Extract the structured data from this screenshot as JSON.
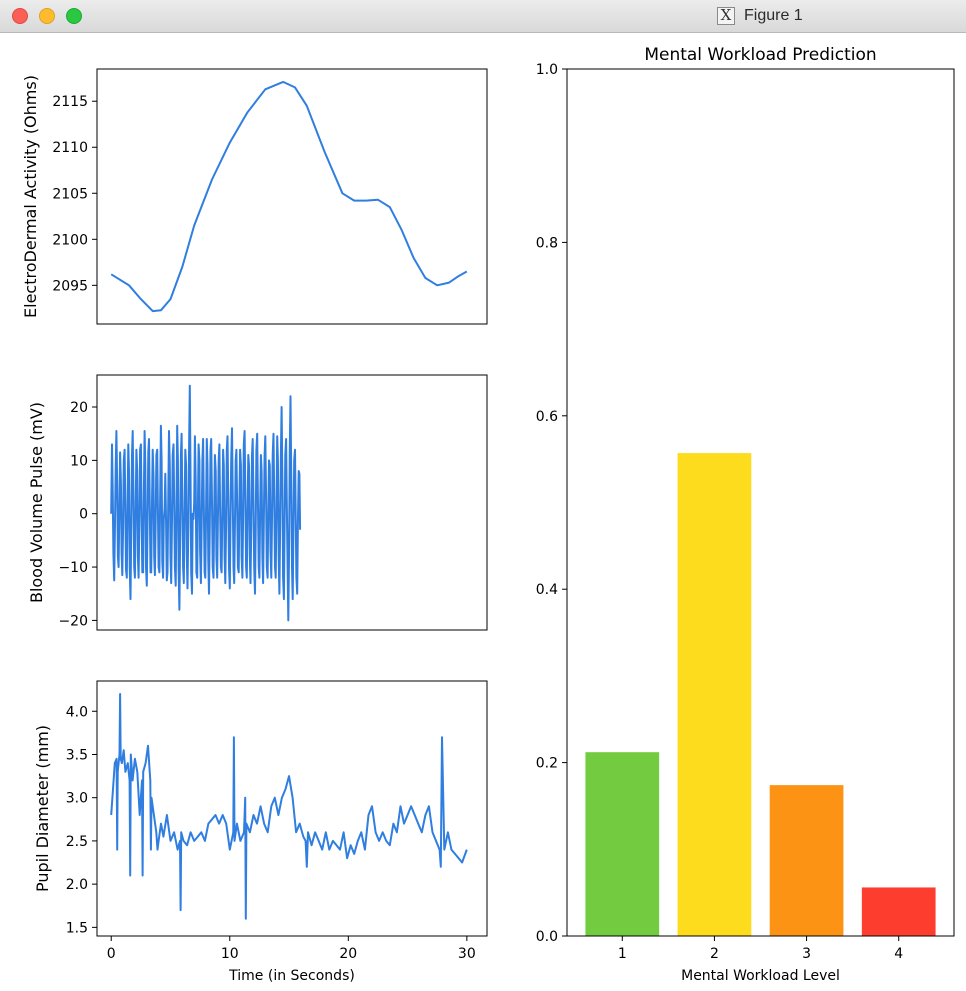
{
  "window": {
    "title": "Figure 1",
    "app_icon": "x11-icon",
    "controls": [
      "close-button",
      "minimize-button",
      "zoom-button"
    ]
  },
  "colors": {
    "line": "#2f7ee0",
    "bars": [
      "#73cc3f",
      "#fcdc1c",
      "#fd9314",
      "#fd3d2d"
    ]
  },
  "chart_data": [
    {
      "type": "line",
      "ylabel": "ElectroDermal Activity (Ohms)",
      "xlim": [
        -1.2,
        31.7
      ],
      "ylim": [
        2090.8,
        2118.5
      ],
      "yticks": [
        2095,
        2100,
        2105,
        2110,
        2115
      ],
      "x": [
        0,
        1.5,
        2.5,
        3.5,
        4.2,
        5,
        6,
        7,
        8.5,
        10,
        11.5,
        13,
        14.5,
        15.5,
        16.5,
        18,
        19.5,
        20.5,
        21.5,
        22.5,
        23.5,
        24.5,
        25.5,
        26.5,
        27.5,
        28.5,
        29.3,
        30
      ],
      "y": [
        2096.2,
        2095.0,
        2093.5,
        2092.2,
        2092.3,
        2093.5,
        2097.0,
        2101.5,
        2106.5,
        2110.5,
        2113.8,
        2116.3,
        2117.1,
        2116.5,
        2114.5,
        2109.5,
        2105.0,
        2104.2,
        2104.2,
        2104.3,
        2103.5,
        2101.0,
        2098.0,
        2095.8,
        2095.0,
        2095.3,
        2096.0,
        2096.5
      ],
      "grid": false
    },
    {
      "type": "line",
      "ylabel": "Blood Volume Pulse (mV)",
      "xlim": [
        -1.2,
        31.7
      ],
      "ylim": [
        -21.8,
        26.0
      ],
      "yticks": [
        -20,
        -10,
        0,
        10,
        20
      ],
      "x_start": 0,
      "x_step": 0.0625,
      "y": [
        0,
        13.0,
        4.5,
        -7.5,
        -12.5,
        -3.0,
        8.5,
        15.5,
        5.0,
        -8.0,
        -10.0,
        1.5,
        11.5,
        6.0,
        -7.5,
        -11.5,
        -2.5,
        10.0,
        12.0,
        2.0,
        -10.5,
        -12.0,
        0.5,
        13.0,
        8.0,
        -10.0,
        -16.0,
        -4.0,
        11.0,
        15.5,
        3.0,
        -10.0,
        -12.0,
        1.0,
        12.0,
        8.0,
        -8.0,
        -12.0,
        -1.0,
        12.0,
        13.0,
        0.0,
        -11.0,
        -11.0,
        2.5,
        15.5,
        9.0,
        -10.0,
        -13.5,
        -2.0,
        11.5,
        14.0,
        1.0,
        -11.0,
        -11.0,
        2.0,
        12.0,
        7.0,
        -8.0,
        -11.5,
        -1.0,
        11.0,
        12.0,
        1.0,
        -10.0,
        -11.0,
        2.0,
        16.5,
        10.0,
        -9.0,
        -12.0,
        -1.0,
        1.0,
        7.5,
        -2.0,
        -12.5,
        -11.0,
        3.5,
        15.5,
        9.0,
        -8.0,
        -13.0,
        -1.0,
        11.0,
        13.0,
        2.0,
        -10.0,
        -13.5,
        0.0,
        16.5,
        10.0,
        -10.0,
        -18.0,
        -5.0,
        11.0,
        15.0,
        3.0,
        -10.0,
        -13.0,
        0.5,
        12.0,
        9.0,
        -8.0,
        -14.0,
        -3.0,
        11.0,
        24.0,
        8.0,
        -11.0,
        -15.0,
        0.0,
        -1.0,
        2.0,
        14.5,
        6.0,
        -11.0,
        -12.0,
        1.0,
        13.0,
        10.0,
        -7.0,
        -13.0,
        -3.0,
        10.0,
        14.0,
        2.0,
        -11.0,
        -12.0,
        1.0,
        14.0,
        9.0,
        -9.0,
        -15.0,
        -2.0,
        12.0,
        14.0,
        2.0,
        -10.0,
        -12.0,
        0.0,
        11.0,
        8.0,
        -8.0,
        -12.0,
        -1.0,
        10.0,
        13.0,
        1.0,
        -10.0,
        -11.0,
        1.0,
        12.0,
        9.0,
        -8.0,
        -13.0,
        -2.0,
        12.0,
        14.5,
        3.0,
        -10.0,
        -14.0,
        -1.0,
        10.0,
        16.0,
        4.0,
        -10.0,
        -13.0,
        -1.0,
        10.0,
        12.0,
        1.0,
        -10.0,
        -11.0,
        2.0,
        12.0,
        9.0,
        -8.0,
        -12.0,
        -1.0,
        13.0,
        15.5,
        4.0,
        -10.0,
        -12.0,
        0.0,
        11.0,
        9.0,
        -8.0,
        -13.0,
        -2.0,
        11.0,
        14.0,
        2.0,
        -10.0,
        -15.0,
        -3.0,
        12.0,
        15.0,
        3.0,
        -10.0,
        -12.0,
        0.0,
        11.0,
        8.0,
        -8.0,
        -13.0,
        -2.0,
        11.0,
        14.5,
        3.0,
        -10.0,
        -12.0,
        0.0,
        10.0,
        9.0,
        -7.0,
        -12.0,
        -1.0,
        11.0,
        15.0,
        3.0,
        -10.0,
        -12.0,
        0.0,
        14.5,
        10.0,
        -8.0,
        -15.0,
        -3.0,
        11.0,
        20.0,
        6.0,
        -12.0,
        -16.0,
        -2.0,
        11.0,
        14.0,
        2.0,
        -10.0,
        -20.0,
        -8.0,
        12.0,
        22.0,
        6.0,
        -10.0,
        -16.0,
        -2.0,
        10.0,
        12.0,
        0.0,
        -12.0,
        -15.0,
        -2.0,
        8.0,
        7.5,
        -3.0
      ]
    },
    {
      "type": "line",
      "xlabel": "Time (in Seconds)",
      "ylabel": "Pupil Diameter (mm)",
      "xlim": [
        -1.2,
        31.7
      ],
      "ylim": [
        1.4,
        4.35
      ],
      "xticks": [
        0,
        10,
        20,
        30
      ],
      "yticks": [
        1.5,
        2.0,
        2.5,
        3.0,
        3.5,
        4.0
      ],
      "x": [
        0,
        0.15,
        0.3,
        0.45,
        0.5,
        0.55,
        0.7,
        0.75,
        0.8,
        0.9,
        1.05,
        1.2,
        1.4,
        1.55,
        1.6,
        1.65,
        1.8,
        2.0,
        2.2,
        2.4,
        2.6,
        2.65,
        2.7,
        2.9,
        3.1,
        3.3,
        3.35,
        3.4,
        3.6,
        3.8,
        3.9,
        4.0,
        4.2,
        4.4,
        4.7,
        5.0,
        5.3,
        5.6,
        5.8,
        5.85,
        5.9,
        6.1,
        6.4,
        6.7,
        7.0,
        7.3,
        7.6,
        7.9,
        8.2,
        8.5,
        8.8,
        9.1,
        9.4,
        9.7,
        10.0,
        10.3,
        10.35,
        10.4,
        10.6,
        10.9,
        11.2,
        11.3,
        11.35,
        11.4,
        11.7,
        12.0,
        12.3,
        12.6,
        12.9,
        13.2,
        13.5,
        13.8,
        14.1,
        14.4,
        14.7,
        15.0,
        15.3,
        15.6,
        15.9,
        16.2,
        16.4,
        16.5,
        16.6,
        16.9,
        17.2,
        17.5,
        17.8,
        18.1,
        18.4,
        18.7,
        19.0,
        19.3,
        19.6,
        19.9,
        20.2,
        20.5,
        20.8,
        21.1,
        21.4,
        21.7,
        22.0,
        22.3,
        22.6,
        22.9,
        23.2,
        23.5,
        23.8,
        24.1,
        24.4,
        24.7,
        25.0,
        25.3,
        25.6,
        25.9,
        26.2,
        26.5,
        26.8,
        27.1,
        27.4,
        27.7,
        27.8,
        27.9,
        28.1,
        28.4,
        28.7,
        29.0,
        29.3,
        29.6,
        30.0
      ],
      "y": [
        2.8,
        3.1,
        3.4,
        3.45,
        2.4,
        3.3,
        3.5,
        4.2,
        3.45,
        3.4,
        3.55,
        3.3,
        3.4,
        3.2,
        2.1,
        3.5,
        3.2,
        3.45,
        3.3,
        2.8,
        3.2,
        2.1,
        3.3,
        3.4,
        3.6,
        3.2,
        2.4,
        3.0,
        2.8,
        2.6,
        2.4,
        2.5,
        2.7,
        2.55,
        2.8,
        2.5,
        2.6,
        2.4,
        2.5,
        1.7,
        2.6,
        2.5,
        2.45,
        2.6,
        2.5,
        2.55,
        2.6,
        2.5,
        2.7,
        2.75,
        2.8,
        2.7,
        2.8,
        2.7,
        2.4,
        2.6,
        3.7,
        2.5,
        2.7,
        2.5,
        2.6,
        3.0,
        1.6,
        2.7,
        2.6,
        2.8,
        2.7,
        2.9,
        2.7,
        2.6,
        2.9,
        3.0,
        2.8,
        3.0,
        3.1,
        3.25,
        3.0,
        2.6,
        2.7,
        2.55,
        2.5,
        2.2,
        2.6,
        2.45,
        2.6,
        2.5,
        2.4,
        2.6,
        2.4,
        2.5,
        2.45,
        2.4,
        2.6,
        2.3,
        2.45,
        2.35,
        2.5,
        2.6,
        2.4,
        2.8,
        2.9,
        2.6,
        2.5,
        2.6,
        2.5,
        2.45,
        2.7,
        2.6,
        2.9,
        2.7,
        2.8,
        2.9,
        2.8,
        2.7,
        2.6,
        2.8,
        2.9,
        2.6,
        2.5,
        2.4,
        2.2,
        3.7,
        2.4,
        2.6,
        2.4,
        2.35,
        2.3,
        2.25,
        2.4
      ],
      "grid": false
    },
    {
      "type": "bar",
      "title": "Mental Workload Prediction",
      "xlabel": "Mental Workload Level",
      "ylabel": "",
      "categories": [
        "1",
        "2",
        "3",
        "4"
      ],
      "values": [
        0.212,
        0.557,
        0.174,
        0.056
      ],
      "ylim": [
        0.0,
        1.0
      ],
      "yticks": [
        0.0,
        0.2,
        0.4,
        0.6,
        0.8,
        1.0
      ],
      "grid": false
    }
  ]
}
